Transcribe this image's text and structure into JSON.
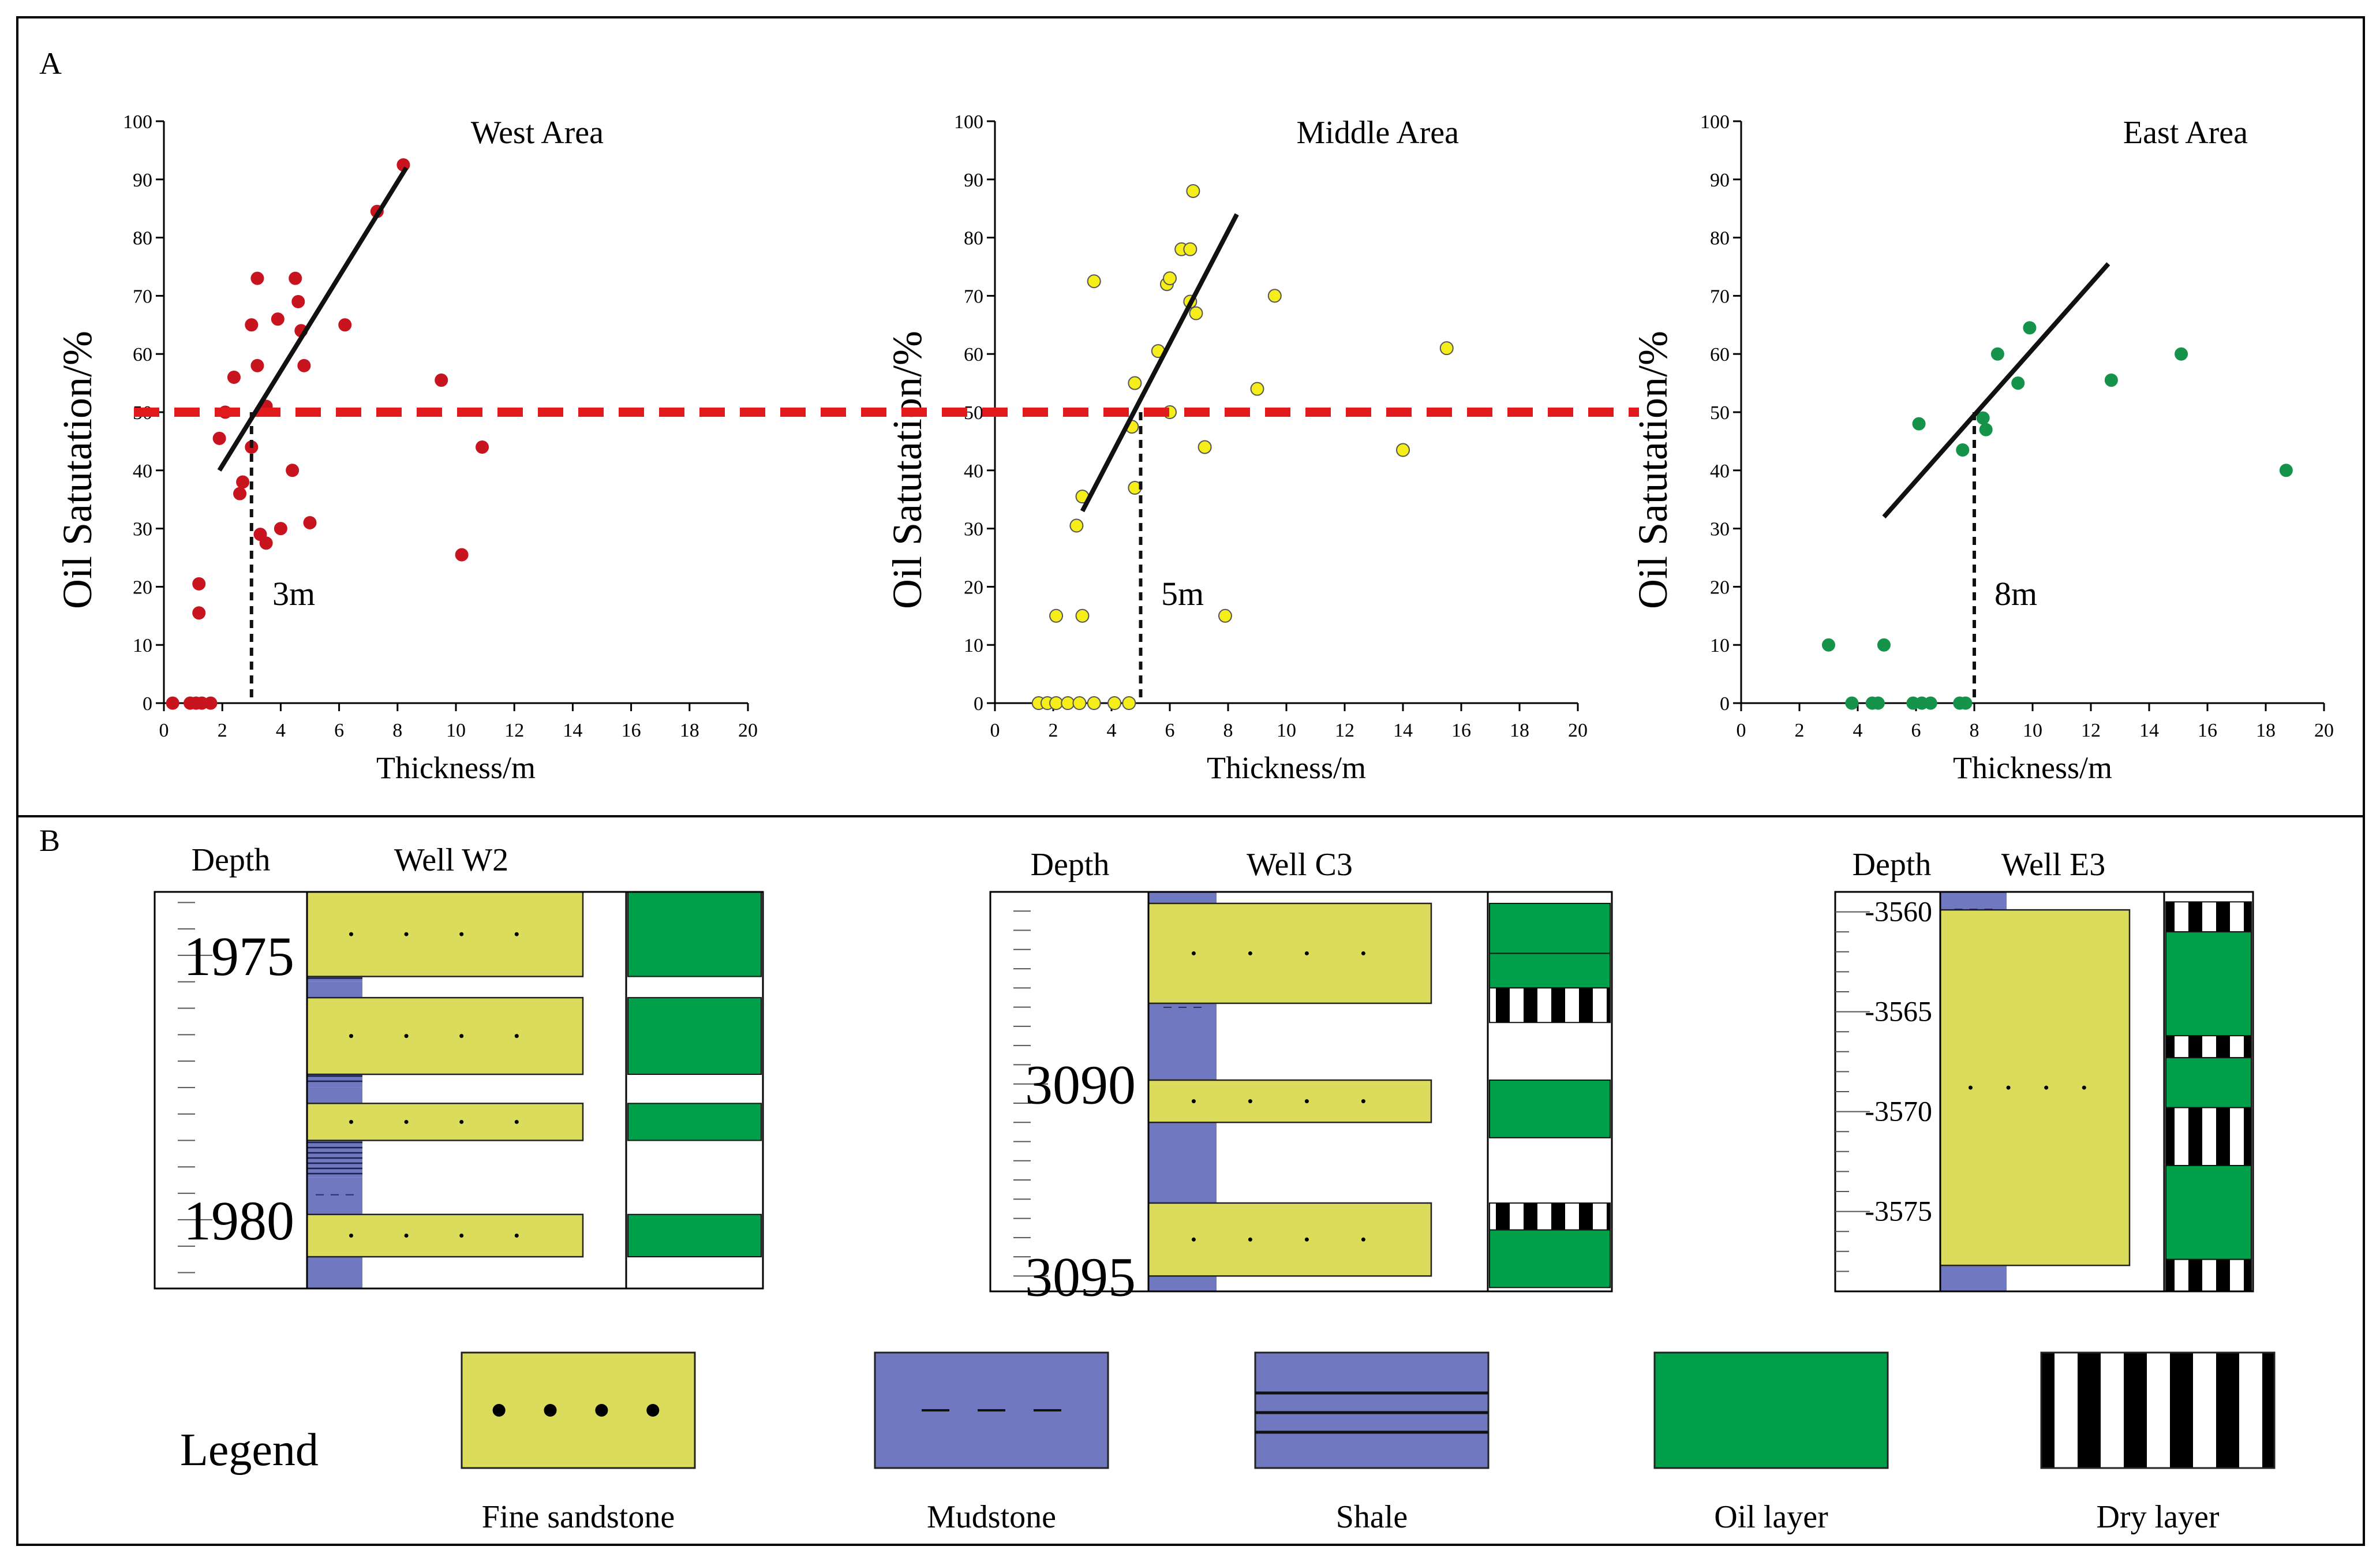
{
  "panel_a_label": "A",
  "panel_b_label": "B",
  "threshold_value": 50,
  "colors": {
    "threshold_line": "#e11b1b",
    "west_points": "#c8141e",
    "middle_points": "#f5ee1a",
    "east_points": "#15934a",
    "fine_sandstone": "#dcdc5c",
    "mudstone": "#7079c0",
    "oil_layer": "#00a04a",
    "dry_layer": "#000000"
  },
  "chart_data": [
    {
      "type": "scatter",
      "title": "West Area",
      "xlabel": "Thickness/m",
      "ylabel": "Oil Satutation/%",
      "xlim": [
        0,
        20
      ],
      "ylim": [
        0,
        100
      ],
      "xticks": [
        0,
        2,
        4,
        6,
        8,
        10,
        12,
        14,
        16,
        18,
        20
      ],
      "yticks": [
        0,
        10,
        20,
        30,
        40,
        50,
        60,
        70,
        80,
        90,
        100
      ],
      "trend_start": [
        1.9,
        40
      ],
      "trend_end": [
        8.3,
        92
      ],
      "cutoff_x": 3,
      "cutoff_label": "3m",
      "points": [
        [
          0.3,
          0
        ],
        [
          0.9,
          0
        ],
        [
          1.1,
          0
        ],
        [
          1.3,
          0
        ],
        [
          1.6,
          0
        ],
        [
          1.2,
          20.5
        ],
        [
          1.2,
          15.5
        ],
        [
          1.9,
          45.5
        ],
        [
          2.1,
          50
        ],
        [
          2.4,
          56
        ],
        [
          2.6,
          36
        ],
        [
          2.7,
          38
        ],
        [
          3.0,
          65
        ],
        [
          3.0,
          44
        ],
        [
          3.2,
          73
        ],
        [
          3.2,
          58
        ],
        [
          3.3,
          29
        ],
        [
          3.5,
          51
        ],
        [
          3.5,
          27.5
        ],
        [
          3.9,
          66
        ],
        [
          4.0,
          30
        ],
        [
          4.4,
          40
        ],
        [
          4.5,
          73
        ],
        [
          4.6,
          69
        ],
        [
          4.7,
          64
        ],
        [
          4.8,
          58
        ],
        [
          5.0,
          31
        ],
        [
          6.2,
          65
        ],
        [
          7.3,
          84.5
        ],
        [
          8.2,
          92.5
        ],
        [
          9.5,
          55.5
        ],
        [
          10.2,
          25.5
        ],
        [
          10.9,
          44
        ]
      ]
    },
    {
      "type": "scatter",
      "title": "Middle Area",
      "xlabel": "Thickness/m",
      "ylabel": "Oil Satutation/%",
      "xlim": [
        0,
        20
      ],
      "ylim": [
        0,
        100
      ],
      "xticks": [
        0,
        2,
        4,
        6,
        8,
        10,
        12,
        14,
        16,
        18,
        20
      ],
      "yticks": [
        0,
        10,
        20,
        30,
        40,
        50,
        60,
        70,
        80,
        90,
        100
      ],
      "trend_start": [
        3.0,
        33
      ],
      "trend_end": [
        8.3,
        84
      ],
      "cutoff_x": 5,
      "cutoff_label": "5m",
      "points": [
        [
          1.5,
          0
        ],
        [
          1.8,
          0
        ],
        [
          2.1,
          0
        ],
        [
          2.5,
          0
        ],
        [
          2.9,
          0
        ],
        [
          3.4,
          0
        ],
        [
          4.1,
          0
        ],
        [
          4.6,
          0
        ],
        [
          2.1,
          15
        ],
        [
          3.0,
          15
        ],
        [
          2.8,
          30.5
        ],
        [
          3.0,
          35.5
        ],
        [
          3.4,
          72.5
        ],
        [
          4.8,
          37
        ],
        [
          4.7,
          47.5
        ],
        [
          4.8,
          55
        ],
        [
          5.6,
          60.5
        ],
        [
          5.9,
          72
        ],
        [
          6.0,
          73
        ],
        [
          6.0,
          50
        ],
        [
          6.4,
          78
        ],
        [
          6.7,
          78
        ],
        [
          6.7,
          69
        ],
        [
          6.8,
          88
        ],
        [
          6.9,
          67
        ],
        [
          7.2,
          44
        ],
        [
          7.9,
          15
        ],
        [
          9.0,
          54
        ],
        [
          9.6,
          70
        ],
        [
          14.0,
          43.5
        ],
        [
          15.5,
          61
        ]
      ]
    },
    {
      "type": "scatter",
      "title": "East Area",
      "xlabel": "Thickness/m",
      "ylabel": "Oil Satutation/%",
      "xlim": [
        0,
        20
      ],
      "ylim": [
        0,
        100
      ],
      "xticks": [
        0,
        2,
        4,
        6,
        8,
        10,
        12,
        14,
        16,
        18,
        20
      ],
      "yticks": [
        0,
        10,
        20,
        30,
        40,
        50,
        60,
        70,
        80,
        90,
        100
      ],
      "trend_start": [
        4.9,
        32
      ],
      "trend_end": [
        12.6,
        75.5
      ],
      "cutoff_x": 8,
      "cutoff_label": "8m",
      "points": [
        [
          3.0,
          10
        ],
        [
          4.9,
          10
        ],
        [
          3.8,
          0
        ],
        [
          4.5,
          0
        ],
        [
          4.7,
          0
        ],
        [
          5.9,
          0
        ],
        [
          6.2,
          0
        ],
        [
          6.5,
          0
        ],
        [
          7.5,
          0
        ],
        [
          7.7,
          0
        ],
        [
          6.1,
          48
        ],
        [
          7.6,
          43.5
        ],
        [
          8.3,
          49
        ],
        [
          8.4,
          47
        ],
        [
          8.8,
          60
        ],
        [
          9.5,
          55
        ],
        [
          9.9,
          64.5
        ],
        [
          12.7,
          55.5
        ],
        [
          15.1,
          60
        ],
        [
          18.7,
          40
        ]
      ]
    }
  ],
  "wells": [
    {
      "name": "Well W2",
      "depth_header": "Depth",
      "depth_labels": [
        {
          "value": 1975,
          "text": "1975"
        },
        {
          "value": 1980,
          "text": "1980"
        }
      ],
      "depth_range": [
        1973.8,
        1981.3
      ],
      "lithology": [
        {
          "rock": "mudstone",
          "top": 1973.8,
          "bottom": 1975.05
        },
        {
          "rock": "shale",
          "top": 1975.05,
          "bottom": 1975.5
        },
        {
          "rock": "mudstone",
          "top": 1975.5,
          "bottom": 1976.9
        },
        {
          "rock": "shale",
          "top": 1976.9,
          "bottom": 1977.5
        },
        {
          "rock": "mudstone",
          "top": 1977.5,
          "bottom": 1978.45
        },
        {
          "rock": "shale",
          "top": 1978.45,
          "bottom": 1979.2
        },
        {
          "rock": "mudstone",
          "top": 1979.2,
          "bottom": 1981.3
        }
      ],
      "sand": [
        {
          "top": 1973.8,
          "bottom": 1975.4
        },
        {
          "top": 1975.8,
          "bottom": 1977.25
        },
        {
          "top": 1977.8,
          "bottom": 1978.5
        },
        {
          "top": 1979.9,
          "bottom": 1980.7
        }
      ],
      "fluid": [
        {
          "kind": "oil",
          "top": 1973.8,
          "bottom": 1975.4
        },
        {
          "kind": "oil",
          "top": 1975.8,
          "bottom": 1977.25
        },
        {
          "kind": "oil",
          "top": 1977.8,
          "bottom": 1978.5
        },
        {
          "kind": "oil",
          "top": 1979.9,
          "bottom": 1980.7
        }
      ]
    },
    {
      "name": "Well C3",
      "depth_header": "Depth",
      "depth_labels": [
        {
          "value": 3090,
          "text": "3090"
        },
        {
          "value": 3095,
          "text": "3095"
        }
      ],
      "depth_range": [
        3085.0,
        3095.4
      ],
      "lithology": [
        {
          "rock": "mudstone",
          "top": 3085.0,
          "bottom": 3095.4
        }
      ],
      "sand": [
        {
          "top": 3085.3,
          "bottom": 3087.9
        },
        {
          "top": 3089.9,
          "bottom": 3091.0
        },
        {
          "top": 3093.1,
          "bottom": 3095.0
        }
      ],
      "fluid": [
        {
          "kind": "oil",
          "top": 3085.3,
          "bottom": 3086.6
        },
        {
          "kind": "oil",
          "top": 3086.6,
          "bottom": 3087.5
        },
        {
          "kind": "dry",
          "top": 3087.5,
          "bottom": 3088.4
        },
        {
          "kind": "oil",
          "top": 3089.9,
          "bottom": 3091.4
        },
        {
          "kind": "dry",
          "top": 3093.1,
          "bottom": 3093.8
        },
        {
          "kind": "oil",
          "top": 3093.8,
          "bottom": 3095.3
        }
      ]
    },
    {
      "name": "Well E3",
      "depth_header": "Depth",
      "depth_labels": [
        {
          "value": 3560,
          "text": "3560"
        },
        {
          "value": 3565,
          "text": "3565"
        },
        {
          "value": 3570,
          "text": "3570"
        },
        {
          "value": 3575,
          "text": "3575"
        }
      ],
      "depth_range": [
        3559.0,
        3579.0
      ],
      "lithology": [
        {
          "rock": "mudstone",
          "top": 3559.0,
          "bottom": 3579.0
        }
      ],
      "sand": [
        {
          "top": 3559.9,
          "bottom": 3577.7
        }
      ],
      "fluid": [
        {
          "kind": "dry",
          "top": 3559.5,
          "bottom": 3561.0
        },
        {
          "kind": "oil",
          "top": 3561.0,
          "bottom": 3566.2
        },
        {
          "kind": "dry",
          "top": 3566.2,
          "bottom": 3567.3
        },
        {
          "kind": "oil",
          "top": 3567.3,
          "bottom": 3569.8
        },
        {
          "kind": "dry",
          "top": 3569.8,
          "bottom": 3572.7
        },
        {
          "kind": "oil",
          "top": 3572.7,
          "bottom": 3577.4
        },
        {
          "kind": "dry",
          "top": 3577.4,
          "bottom": 3579.0
        }
      ]
    }
  ],
  "legend": {
    "title": "Legend",
    "items": [
      {
        "key": "fine_sandstone",
        "label": "Fine sandstone"
      },
      {
        "key": "mudstone",
        "label": "Mudstone"
      },
      {
        "key": "shale",
        "label": "Shale"
      },
      {
        "key": "oil_layer",
        "label": "Oil layer"
      },
      {
        "key": "dry_layer",
        "label": "Dry layer"
      }
    ]
  }
}
